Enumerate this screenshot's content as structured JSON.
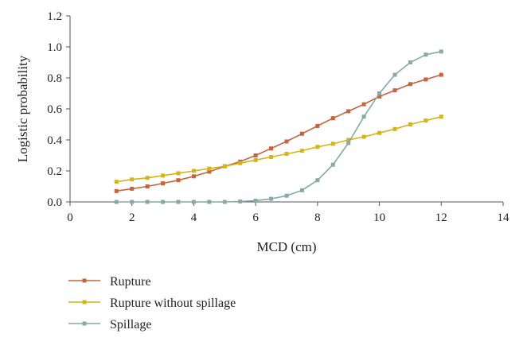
{
  "chart_data": {
    "type": "line",
    "title": "",
    "xlabel": "MCD (cm)",
    "ylabel": "Logistic probability",
    "xlim": [
      0,
      14
    ],
    "ylim": [
      0,
      1.2
    ],
    "xticks": [
      0,
      2,
      4,
      6,
      8,
      10,
      12,
      14
    ],
    "yticks": [
      0.0,
      0.2,
      0.4,
      0.6,
      0.8,
      1.0,
      1.2
    ],
    "xtick_labels": [
      "0",
      "2",
      "4",
      "6",
      "8",
      "10",
      "12",
      "14"
    ],
    "ytick_labels": [
      "0.0",
      "0.2",
      "0.4",
      "0.6",
      "0.8",
      "1.0",
      "1.2"
    ],
    "grid": false,
    "legend_position": "bottom-left",
    "x": [
      1.5,
      2.0,
      2.5,
      3.0,
      3.5,
      4.0,
      4.5,
      5.0,
      5.5,
      6.0,
      6.5,
      7.0,
      7.5,
      8.0,
      8.5,
      9.0,
      9.5,
      10.0,
      10.5,
      11.0,
      11.5,
      12.0
    ],
    "series": [
      {
        "name": "Rupture",
        "color": "#c8643c",
        "values": [
          0.07,
          0.085,
          0.1,
          0.12,
          0.14,
          0.165,
          0.195,
          0.23,
          0.26,
          0.3,
          0.345,
          0.39,
          0.44,
          0.49,
          0.54,
          0.585,
          0.63,
          0.68,
          0.72,
          0.76,
          0.79,
          0.82
        ]
      },
      {
        "name": "Rupture without spillage",
        "color": "#d4b416",
        "values": [
          0.13,
          0.145,
          0.155,
          0.17,
          0.185,
          0.2,
          0.215,
          0.23,
          0.25,
          0.27,
          0.29,
          0.31,
          0.33,
          0.355,
          0.375,
          0.4,
          0.42,
          0.445,
          0.47,
          0.5,
          0.525,
          0.55
        ]
      },
      {
        "name": "Spillage",
        "color": "#86aaa4",
        "values": [
          0.0,
          0.0,
          0.0,
          0.0,
          0.0,
          0.0,
          0.0,
          0.0,
          0.003,
          0.008,
          0.02,
          0.04,
          0.075,
          0.14,
          0.24,
          0.38,
          0.55,
          0.7,
          0.82,
          0.9,
          0.95,
          0.97
        ]
      }
    ]
  }
}
